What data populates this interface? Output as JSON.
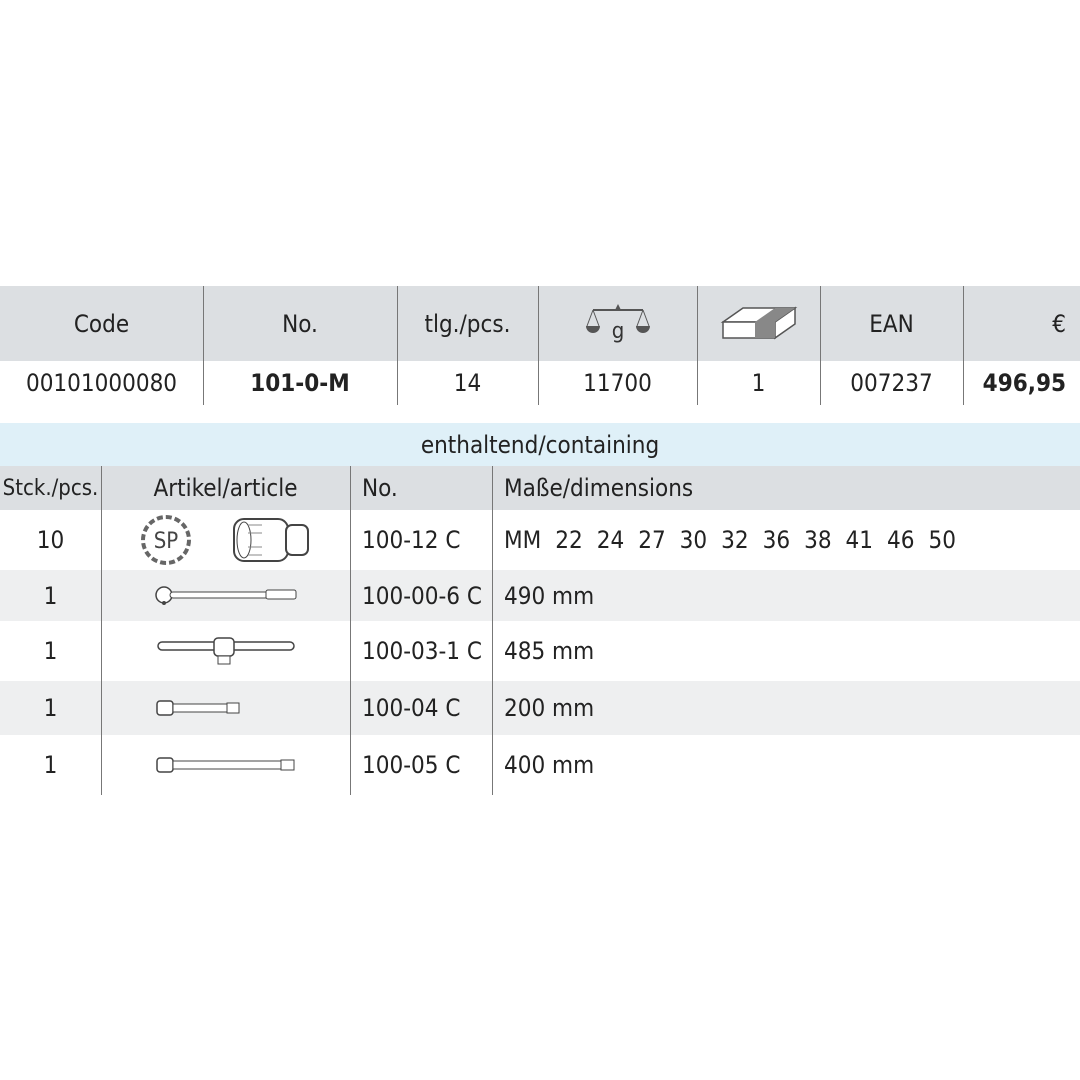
{
  "summary": {
    "headers": {
      "code": "Code",
      "no": "No.",
      "pcs": "tlg./pcs.",
      "weight_icon": "scale-weight-icon",
      "weight_unit": "g",
      "package_icon": "package-box-icon",
      "ean": "EAN",
      "price": "€"
    },
    "row": {
      "code": "00101000080",
      "no": "101-0-M",
      "pcs": "14",
      "weight": "11700",
      "package": "1",
      "ean": "007237",
      "price": "496,95"
    }
  },
  "contents": {
    "title": "enthaltend/containing",
    "headers": {
      "qty": "Stck./pcs.",
      "article": "Artikel/article",
      "no": "No.",
      "dims": "Maße/dimensions"
    },
    "rows": [
      {
        "qty": "10",
        "article_icon": "socket-icon",
        "badge": "SP",
        "no": "100-12 C",
        "dims_unit": "MM",
        "dims": [
          "22",
          "24",
          "27",
          "30",
          "32",
          "36",
          "38",
          "41",
          "46",
          "50"
        ]
      },
      {
        "qty": "1",
        "article_icon": "ratchet-icon",
        "no": "100-00-6 C",
        "dims": "490 mm"
      },
      {
        "qty": "1",
        "article_icon": "t-handle-icon",
        "no": "100-03-1 C",
        "dims": "485 mm"
      },
      {
        "qty": "1",
        "article_icon": "extension-bar-short-icon",
        "no": "100-04 C",
        "dims": "200 mm"
      },
      {
        "qty": "1",
        "article_icon": "extension-bar-long-icon",
        "no": "100-05 C",
        "dims": "400 mm"
      }
    ]
  },
  "colors": {
    "header_gray": "#dcdfe2",
    "band_blue": "#dff0f8",
    "stripe": "#eeeff0"
  }
}
